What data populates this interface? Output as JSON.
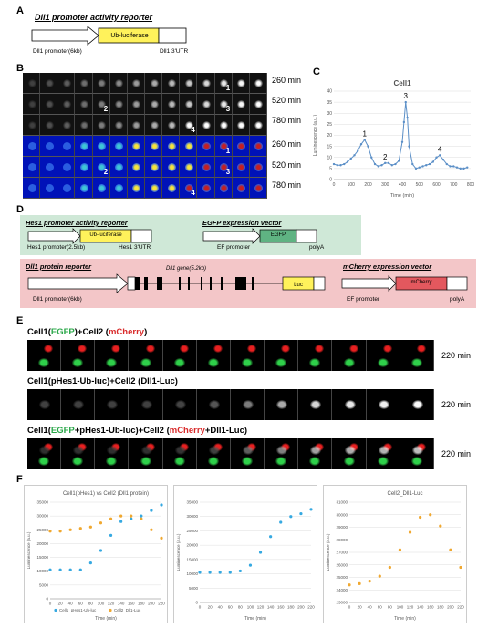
{
  "panels": {
    "a": "A",
    "b": "B",
    "c": "C",
    "d": "D",
    "e": "E",
    "f": "F"
  },
  "panel_a": {
    "title": "Dll1 promoter activity reporter",
    "promoter": "Dll1 promoter(6kb)",
    "gene": "Ub-luciferase",
    "utr": "Dll1 3'UTR"
  },
  "panel_b": {
    "time1": "260 min",
    "time2": "520 min",
    "time3": "780 min",
    "time4": "260 min",
    "time5": "520 min",
    "time6": "780 min",
    "cell_markers": [
      "1",
      "2",
      "3",
      "4"
    ]
  },
  "panel_d": {
    "hes1_title": "Hes1 promoter activity reporter",
    "hes1_promoter": "Hes1 promoter(2.5kb)",
    "hes1_gene": "Ub-luciferase",
    "hes1_utr": "Hes1 3'UTR",
    "egfp_title": "EGFP expression vector",
    "egfp_promoter": "EF promoter",
    "egfp_gene": "EGFP",
    "egfp_polya": "polyA",
    "dll1_title": "Dll1 protein reporter",
    "dll1_gene_label": "Dll1 gene(5.2kb)",
    "dll1_promoter": "Dll1 promoter(6kb)",
    "luc": "Luc",
    "mcherry_title": "mCherry expression vector",
    "mcherry_promoter": "EF promoter",
    "mcherry_gene": "mCherry",
    "mcherry_polya": "polyA"
  },
  "panel_e": {
    "row1_label_parts": [
      "Cell1(",
      "EGFP",
      ")+Cell2 (",
      "mCherry",
      ")"
    ],
    "row2_label": "Cell1(pHes1-Ub-luc)+Cell2 (Dll1-Luc)",
    "row3_label_parts": [
      "Cell1(",
      "EGFP",
      "+pHes1-Ub-luc)+Cell2 (",
      "mCherry",
      "+Dll1-Luc)"
    ],
    "time1": "220 min",
    "time2": "220 min",
    "time3": "220 min"
  },
  "chart_data": [
    {
      "type": "line",
      "title": "Cell1",
      "xlabel": "Time (min)",
      "ylabel": "Luminescence (a.u.)",
      "xlim": [
        0,
        800
      ],
      "ylim": [
        0,
        40
      ],
      "xticks": [
        0,
        100,
        200,
        300,
        400,
        500,
        600,
        700,
        800
      ],
      "yticks": [
        0,
        5,
        10,
        15,
        20,
        25,
        30,
        35,
        40
      ],
      "x": [
        0,
        20,
        40,
        60,
        80,
        100,
        120,
        140,
        160,
        180,
        200,
        220,
        240,
        260,
        280,
        300,
        320,
        340,
        360,
        380,
        400,
        410,
        420,
        430,
        440,
        460,
        480,
        500,
        520,
        540,
        560,
        580,
        600,
        620,
        640,
        660,
        680,
        700,
        720,
        740,
        760,
        780
      ],
      "values": [
        7,
        6.5,
        6.5,
        7,
        8,
        9.5,
        11,
        13,
        16,
        18,
        15,
        10,
        7,
        6,
        6.5,
        7.5,
        7.5,
        6.5,
        7,
        8.5,
        17,
        26,
        35,
        28,
        15,
        7,
        5,
        5.5,
        6,
        6.5,
        7,
        8,
        10,
        11,
        9,
        7,
        6,
        6,
        5.5,
        5,
        5,
        5.5
      ],
      "annotations": [
        {
          "label": "1",
          "x": 180,
          "y": 18
        },
        {
          "label": "2",
          "x": 300,
          "y": 7.5
        },
        {
          "label": "3",
          "x": 420,
          "y": 35
        },
        {
          "label": "4",
          "x": 620,
          "y": 11
        }
      ],
      "grid": true
    },
    {
      "type": "scatter",
      "title": "Cell1(pHes1) vs Cell2 (Dll1 protein)",
      "xlabel": "Time (min)",
      "ylabel": "Luminescence (a.u.)",
      "xlim": [
        0,
        220
      ],
      "ylim": [
        0,
        35000
      ],
      "xticks": [
        0,
        20,
        40,
        60,
        80,
        100,
        120,
        140,
        160,
        180,
        200,
        220
      ],
      "yticks": [
        0,
        5000,
        10000,
        15000,
        20000,
        25000,
        30000,
        35000
      ],
      "x": [
        0,
        20,
        40,
        60,
        80,
        100,
        120,
        140,
        160,
        180,
        200,
        220
      ],
      "series": [
        {
          "name": "Cell1_pHes1-Ub-luc",
          "color": "#36a9e1",
          "values": [
            10500,
            10500,
            10500,
            10500,
            13000,
            17500,
            23000,
            28000,
            29000,
            30000,
            32000,
            34000
          ]
        },
        {
          "name": "Cell2_Dll1-Luc",
          "color": "#f0a830",
          "values": [
            24500,
            24500,
            25000,
            25500,
            26000,
            27500,
            29000,
            30000,
            30000,
            29000,
            25000,
            22000
          ]
        }
      ],
      "legend": "bottom-left",
      "grid": true
    },
    {
      "type": "scatter",
      "title": "",
      "xlabel": "Time (min)",
      "ylabel": "Luminescence (a.u.)",
      "xlim": [
        0,
        220
      ],
      "ylim": [
        0,
        35000
      ],
      "xticks": [
        0,
        20,
        40,
        60,
        80,
        100,
        120,
        140,
        160,
        180,
        200,
        220
      ],
      "yticks": [
        0,
        5000,
        10000,
        15000,
        20000,
        25000,
        30000,
        35000
      ],
      "x": [
        0,
        20,
        40,
        60,
        80,
        100,
        120,
        140,
        160,
        180,
        200,
        220
      ],
      "series": [
        {
          "name": "",
          "color": "#36a9e1",
          "values": [
            10500,
            10500,
            10500,
            10500,
            11000,
            13000,
            17500,
            23000,
            28000,
            30000,
            31000,
            32500
          ]
        }
      ],
      "grid": true
    },
    {
      "type": "scatter",
      "title": "Cell2_Dll1-Luc",
      "xlabel": "Time (min)",
      "ylabel": "Luminescence (a.u.)",
      "xlim": [
        0,
        220
      ],
      "ylim": [
        23000,
        31000
      ],
      "xticks": [
        0,
        20,
        40,
        60,
        80,
        100,
        120,
        140,
        160,
        180,
        200,
        220
      ],
      "yticks": [
        23000,
        24000,
        25000,
        26000,
        27000,
        28000,
        29000,
        30000,
        31000
      ],
      "x": [
        0,
        20,
        40,
        60,
        80,
        100,
        120,
        140,
        160,
        180,
        200,
        220
      ],
      "series": [
        {
          "name": "",
          "color": "#f0a830",
          "values": [
            24400,
            24500,
            24700,
            25100,
            25800,
            27200,
            28600,
            29800,
            30000,
            29100,
            27200,
            25800
          ]
        }
      ],
      "grid": true
    }
  ]
}
